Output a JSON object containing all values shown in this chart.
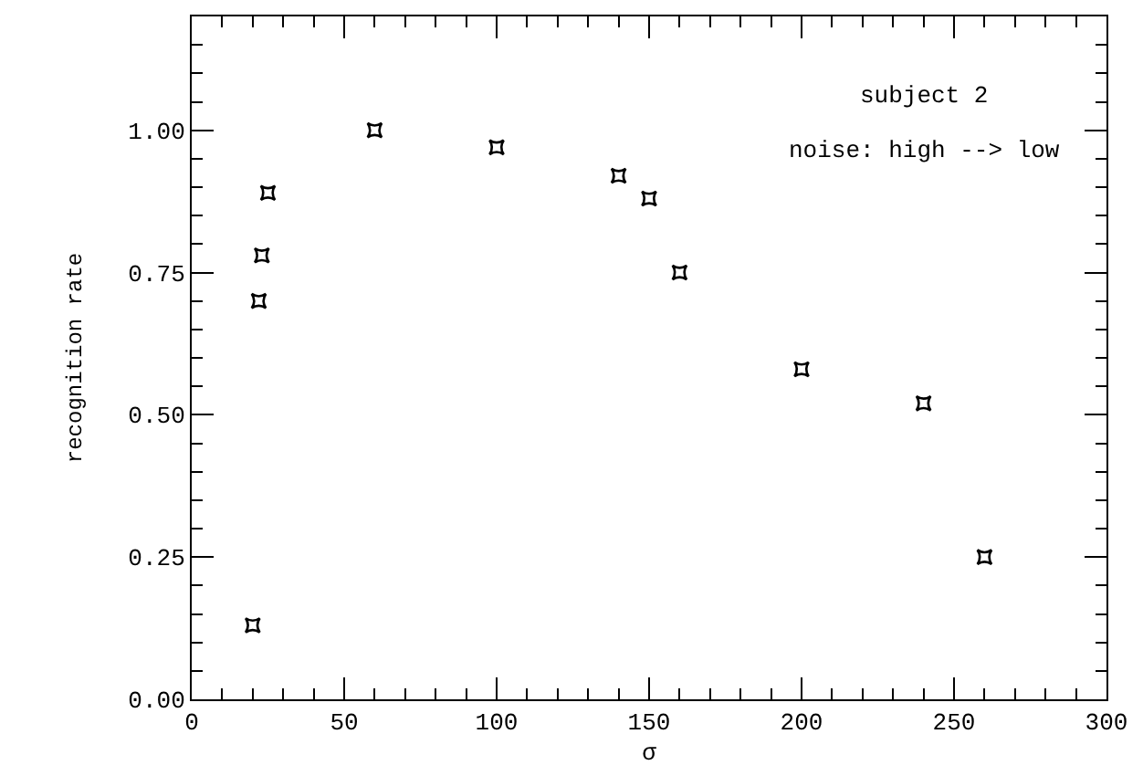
{
  "chart_data": {
    "type": "scatter",
    "xlabel": "σ",
    "ylabel": "recognition rate",
    "x": [
      20,
      22,
      23,
      25,
      60,
      100,
      140,
      150,
      160,
      200,
      240,
      260
    ],
    "series": [
      {
        "color": "#000000",
        "values": [
          0.13,
          0.7,
          0.78,
          0.89,
          1.0,
          0.97,
          0.92,
          0.88,
          0.75,
          0.58,
          0.52,
          0.25
        ]
      }
    ],
    "xlim": [
      0,
      300
    ],
    "xticks": [
      0,
      50,
      100,
      150,
      200,
      250,
      300
    ],
    "ylim": [
      0,
      1.2
    ],
    "yticks": [
      {
        "value": 0,
        "label": "0.00"
      },
      {
        "value": 0.25,
        "label": "0.25"
      },
      {
        "value": 0.5,
        "label": "0.50"
      },
      {
        "value": 0.75,
        "label": "0.75"
      },
      {
        "value": 1.0,
        "label": "1.00"
      }
    ],
    "annotations": [
      "subject 2",
      "noise: high --> low"
    ],
    "marker": "star"
  }
}
